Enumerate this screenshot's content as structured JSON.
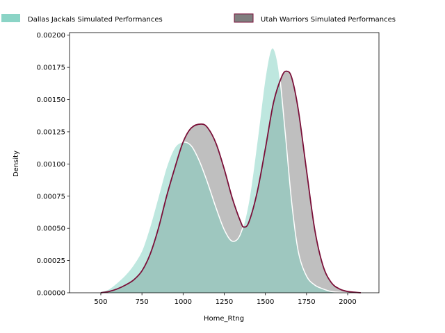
{
  "chart_data": {
    "type": "area",
    "xlabel": "Home_Rtng",
    "ylabel": "Density",
    "xlim": [
      310,
      2190
    ],
    "ylim": [
      0,
      0.00202
    ],
    "x_ticks": [
      500,
      750,
      1000,
      1250,
      1500,
      1750,
      2000
    ],
    "x_tick_labels": [
      "500",
      "750",
      "1000",
      "1250",
      "1500",
      "1750",
      "2000"
    ],
    "y_ticks": [
      0,
      0.00025,
      0.0005,
      0.00075,
      0.001,
      0.00125,
      0.0015,
      0.00175,
      0.002
    ],
    "y_tick_labels": [
      "0.00000",
      "0.00025",
      "0.00050",
      "0.00075",
      "0.00100",
      "0.00125",
      "0.00150",
      "0.00175",
      "0.00200"
    ],
    "legend_position": "top",
    "series": [
      {
        "name": "Dallas Jackals Simulated Performances",
        "fill_color": "#7ecfc0",
        "line_color": "#ffffff",
        "x": [
          500,
          550,
          600,
          650,
          700,
          750,
          800,
          850,
          900,
          950,
          1000,
          1050,
          1100,
          1150,
          1200,
          1250,
          1300,
          1350,
          1400,
          1450,
          1500,
          1540,
          1580,
          1620,
          1660,
          1700,
          1750,
          1800,
          1850,
          1900,
          1950,
          2000
        ],
        "values": [
          1e-05,
          3e-05,
          8e-05,
          0.00014,
          0.00022,
          0.00033,
          0.00052,
          0.00075,
          0.00098,
          0.00113,
          0.00117,
          0.00114,
          0.00102,
          0.00085,
          0.00066,
          0.00049,
          0.0004,
          0.00046,
          0.00072,
          0.00118,
          0.00168,
          0.0019,
          0.00175,
          0.00125,
          0.0007,
          0.00032,
          0.00013,
          6e-05,
          3e-05,
          1e-05,
          4e-06,
          0.0
        ]
      },
      {
        "name": "Utah Warriors Simulated Performances",
        "fill_color": "#7f7f7f",
        "line_color": "#7a0f38",
        "x": [
          500,
          550,
          600,
          650,
          700,
          750,
          800,
          850,
          900,
          950,
          1000,
          1050,
          1110,
          1150,
          1200,
          1250,
          1300,
          1350,
          1370,
          1400,
          1450,
          1500,
          1550,
          1600,
          1630,
          1660,
          1700,
          1750,
          1800,
          1850,
          1900,
          1950,
          2000,
          2050,
          2080
        ],
        "values": [
          0.0,
          1e-05,
          3e-05,
          6e-05,
          0.0001,
          0.00017,
          0.0003,
          0.0005,
          0.00075,
          0.00097,
          0.00117,
          0.00128,
          0.00131,
          0.00128,
          0.00116,
          0.00096,
          0.00073,
          0.00055,
          0.00051,
          0.00055,
          0.00078,
          0.00112,
          0.00148,
          0.00168,
          0.00172,
          0.00167,
          0.00142,
          0.00095,
          0.00049,
          0.00021,
          8e-05,
          3e-05,
          1e-05,
          3e-06,
          0.0
        ]
      }
    ]
  }
}
